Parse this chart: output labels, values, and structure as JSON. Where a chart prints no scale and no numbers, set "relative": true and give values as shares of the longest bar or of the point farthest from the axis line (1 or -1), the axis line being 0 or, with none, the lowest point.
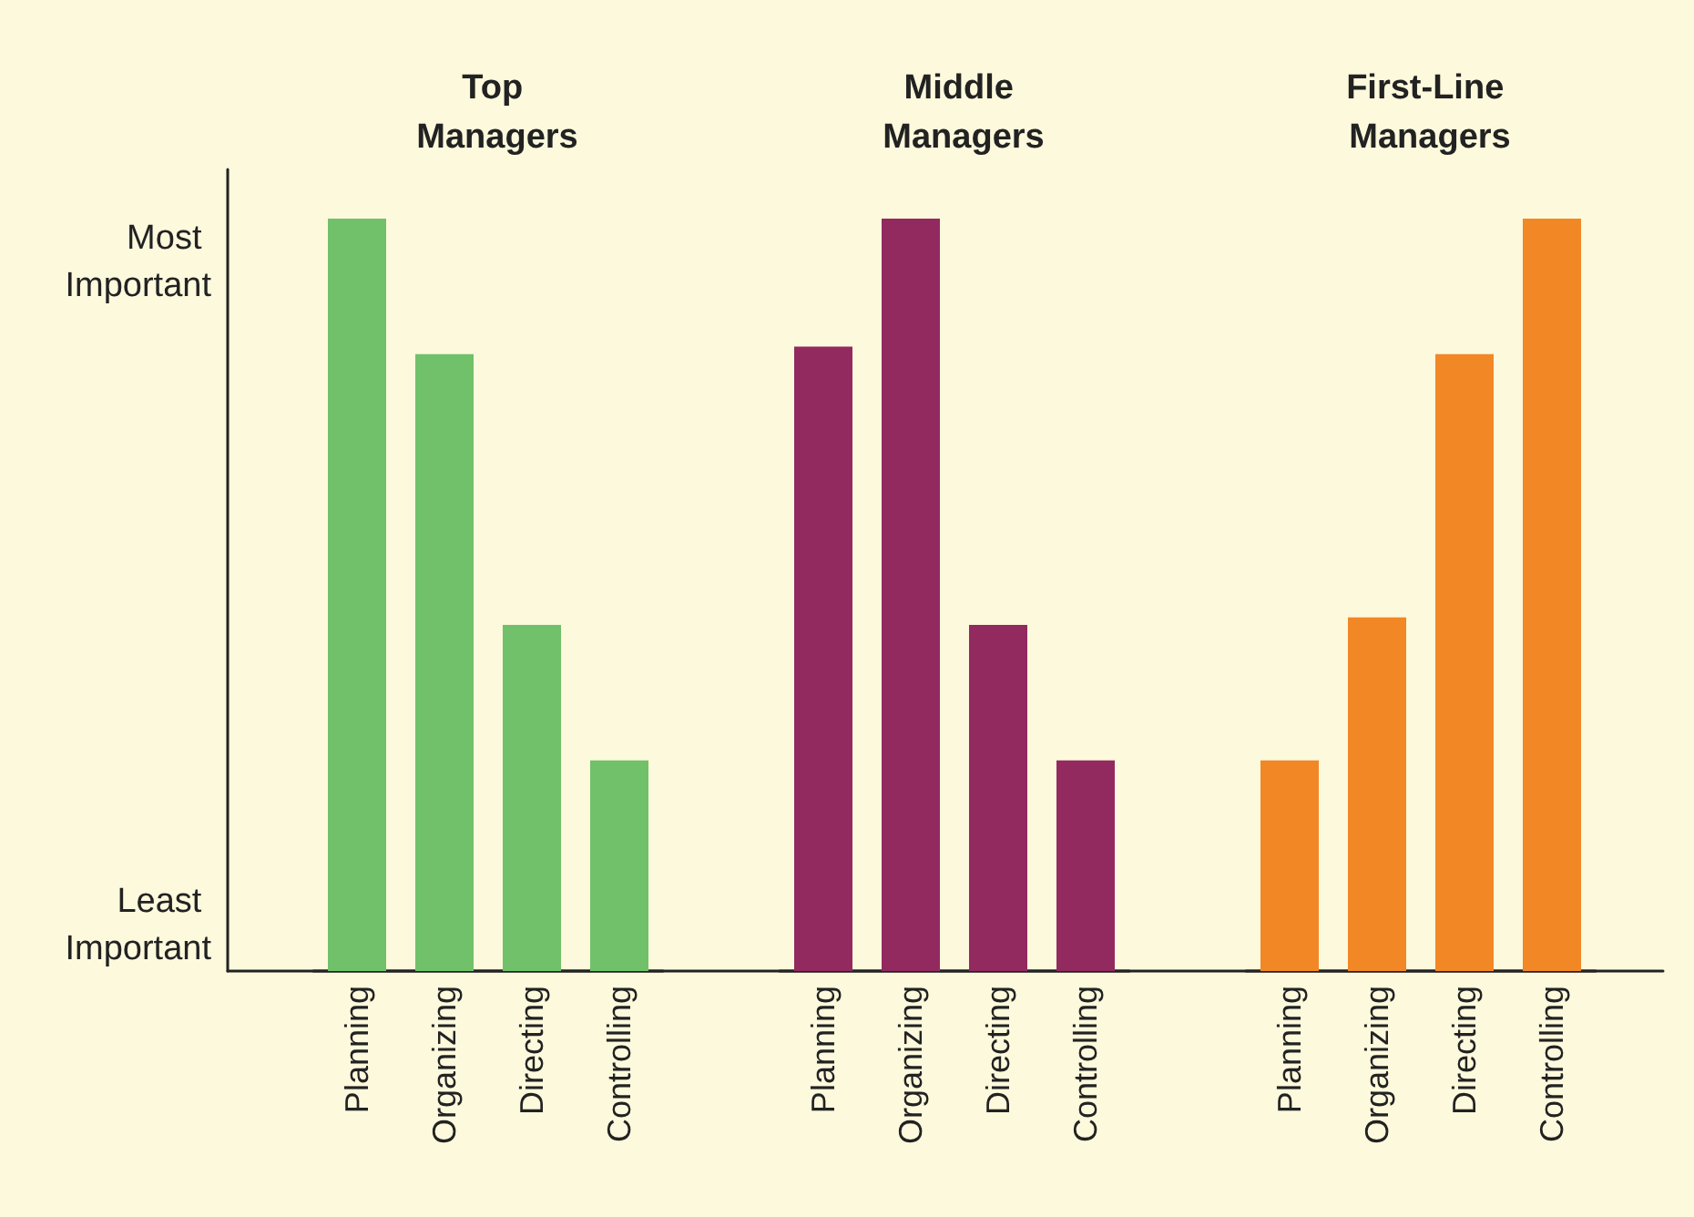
{
  "chart_data": [
    {
      "type": "bar",
      "relative": true,
      "title": "Top Managers",
      "categories": [
        "Planning",
        "Organizing",
        "Directing",
        "Controlling"
      ],
      "values": [
        1,
        0.82,
        0.46,
        0.28
      ],
      "color": "#70c16a",
      "annotations": [
        "Most Important",
        "Least Important"
      ]
    },
    {
      "type": "bar",
      "relative": true,
      "title": "Middle Managers",
      "categories": [
        "Planning",
        "Organizing",
        "Directing",
        "Controlling"
      ],
      "values": [
        0.83,
        1,
        0.46,
        0.28
      ],
      "color": "#922a60"
    },
    {
      "type": "bar",
      "relative": true,
      "title": "First-Line Managers",
      "categories": [
        "Planning",
        "Organizing",
        "Directing",
        "Controlling"
      ],
      "values": [
        0.28,
        0.47,
        0.82,
        1
      ],
      "color": "#f28726"
    }
  ]
}
